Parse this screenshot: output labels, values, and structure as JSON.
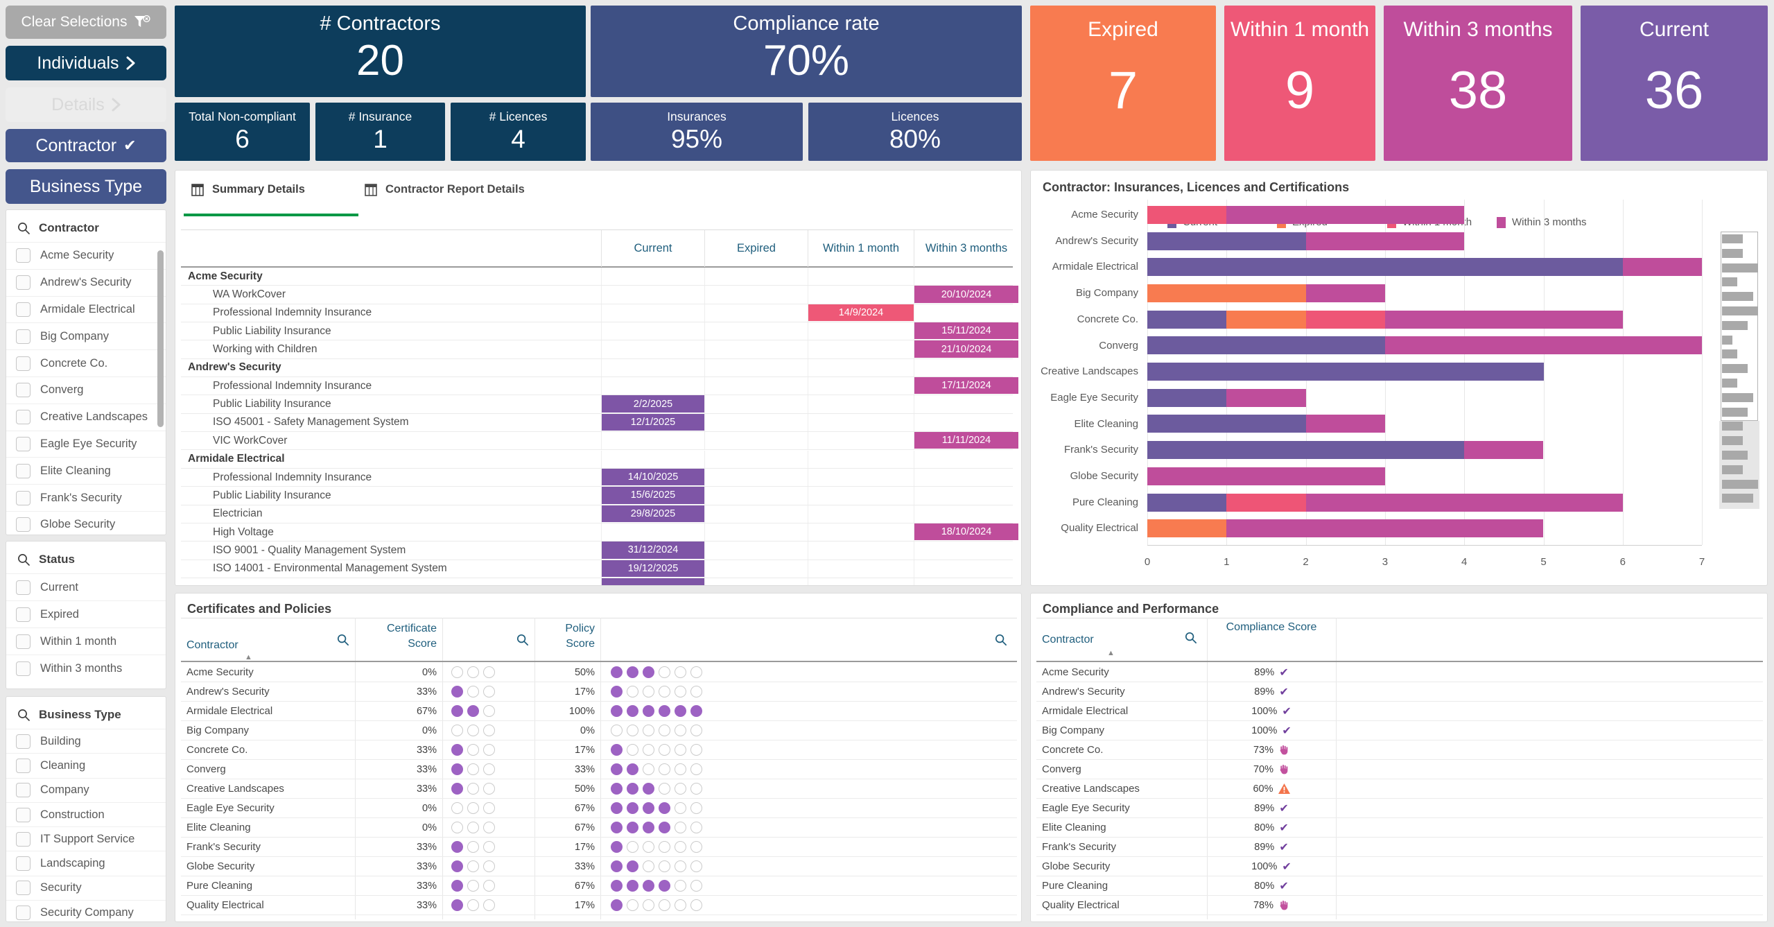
{
  "colors": {
    "navy": "#0d3d5c",
    "tile_blue": "#3e5084",
    "button_blue": "#44568c",
    "orange": "#f87b50",
    "pink": "#ee5877",
    "magenta": "#bf4d9b",
    "purple": "#7a5ca8",
    "cell_current": "#7e55a6",
    "dot": "#9d62c3",
    "dot_empty_border": "#cbcbcb",
    "check": "#713f9d",
    "hand": "#c2519e",
    "warning": "#f3744b",
    "tab_green": "#009845",
    "header_blue": "#1f5e7d",
    "minimap_bar": "#a9a9a9"
  },
  "toolbar": {
    "clear_selections": "Clear Selections",
    "individuals": "Individuals",
    "details": "Details",
    "contractor": "Contractor",
    "business_type": "Business Type"
  },
  "kpis": {
    "contractors": {
      "label": "# Contractors",
      "value": "20"
    },
    "total_non_compliant": {
      "label": "Total Non-compliant",
      "value": "6"
    },
    "num_insurance": {
      "label": "# Insurance",
      "value": "1"
    },
    "num_licences": {
      "label": "# Licences",
      "value": "4"
    },
    "compliance_rate": {
      "label": "Compliance rate",
      "value": "70%"
    },
    "insurances": {
      "label": "Insurances",
      "value": "95%"
    },
    "licences": {
      "label": "Licences",
      "value": "80%"
    },
    "expired": {
      "label": "Expired",
      "value": "7"
    },
    "within_1_month": {
      "label": "Within 1 month",
      "value": "9"
    },
    "within_3_months": {
      "label": "Within 3 months",
      "value": "38"
    },
    "current": {
      "label": "Current",
      "value": "36"
    }
  },
  "filters": {
    "contractor": {
      "title": "Contractor",
      "items": [
        "Acme Security",
        "Andrew's Security",
        "Armidale Electrical",
        "Big Company",
        "Concrete Co.",
        "Converg",
        "Creative Landscapes",
        "Eagle Eye Security",
        "Elite Cleaning",
        "Frank's Security",
        "Globe Security"
      ]
    },
    "status": {
      "title": "Status",
      "items": [
        "Current",
        "Expired",
        "Within 1 month",
        "Within 3 months"
      ]
    },
    "business_type": {
      "title": "Business Type",
      "items": [
        "Building",
        "Cleaning",
        "Company",
        "Construction",
        "IT Support Service",
        "Landscaping",
        "Security",
        "Security Company"
      ]
    }
  },
  "tabs": [
    {
      "label": "Summary Details",
      "active": true
    },
    {
      "label": "Contractor Report Details",
      "active": false
    }
  ],
  "summary_table": {
    "columns": [
      "",
      "Current",
      "Expired",
      "Within 1 month",
      "Within 3 months"
    ],
    "rows": [
      {
        "label": "Acme Security",
        "group": true
      },
      {
        "label": "WA WorkCover",
        "status": "within_3_months",
        "date": "20/10/2024"
      },
      {
        "label": "Professional Indemnity Insurance",
        "status": "within_1_month",
        "date": "14/9/2024"
      },
      {
        "label": "Public Liability Insurance",
        "status": "within_3_months",
        "date": "15/11/2024"
      },
      {
        "label": "Working with Children",
        "status": "within_3_months",
        "date": "21/10/2024"
      },
      {
        "label": "Andrew's Security",
        "group": true
      },
      {
        "label": "Professional Indemnity Insurance",
        "status": "within_3_months",
        "date": "17/11/2024"
      },
      {
        "label": "Public Liability Insurance",
        "status": "current",
        "date": "2/2/2025"
      },
      {
        "label": "ISO 45001 - Safety Management System",
        "status": "current",
        "date": "12/1/2025"
      },
      {
        "label": "VIC WorkCover",
        "status": "within_3_months",
        "date": "11/11/2024"
      },
      {
        "label": "Armidale Electrical",
        "group": true
      },
      {
        "label": "Professional Indemnity Insurance",
        "status": "current",
        "date": "14/10/2025"
      },
      {
        "label": "Public Liability Insurance",
        "status": "current",
        "date": "15/6/2025"
      },
      {
        "label": "Electrician",
        "status": "current",
        "date": "29/8/2025"
      },
      {
        "label": "High Voltage",
        "status": "within_3_months",
        "date": "18/10/2024"
      },
      {
        "label": "ISO 9001 - Quality Management System",
        "status": "current",
        "date": "31/12/2024"
      },
      {
        "label": "ISO 14001 - Environmental Management System",
        "status": "current",
        "date": "19/12/2025"
      },
      {
        "label": "",
        "status": "current",
        "date": "",
        "partial": true
      }
    ]
  },
  "chart_data": {
    "type": "bar",
    "orientation": "horizontal",
    "stacked": true,
    "title": "Contractor: Insurances, Licences and Certifications",
    "categories": [
      "Acme Security",
      "Andrew's Security",
      "Armidale Electrical",
      "Big Company",
      "Concrete Co.",
      "Converg",
      "Creative Landscapes",
      "Eagle Eye Security",
      "Elite Cleaning",
      "Frank's Security",
      "Globe Security",
      "Pure Cleaning",
      "Quality Electrical"
    ],
    "series": [
      {
        "name": "Current",
        "color": "#6c5b9e",
        "values": [
          0,
          2,
          6,
          0,
          1,
          3,
          5,
          1,
          2,
          4,
          0,
          1,
          0
        ]
      },
      {
        "name": "Expired",
        "color": "#f87b50",
        "values": [
          0,
          0,
          0,
          2,
          1,
          0,
          0,
          0,
          0,
          0,
          0,
          0,
          1
        ]
      },
      {
        "name": "Within 1 month",
        "color": "#ee5576",
        "values": [
          1,
          0,
          0,
          0,
          1,
          0,
          0,
          0,
          0,
          0,
          0,
          1,
          0
        ]
      },
      {
        "name": "Within 3 months",
        "color": "#bf4d9b",
        "values": [
          3,
          2,
          1,
          1,
          3,
          4,
          0,
          1,
          1,
          1,
          3,
          4,
          4
        ]
      }
    ],
    "xlim": [
      0,
      7
    ],
    "xticks": [
      "0",
      "1",
      "2",
      "3",
      "4",
      "5",
      "6",
      "7"
    ],
    "legend_position": "top",
    "grid": true,
    "minimap_totals": [
      4,
      4,
      7,
      3,
      6,
      7,
      5,
      2,
      3,
      5,
      3,
      6,
      5,
      4,
      4,
      5,
      4,
      7,
      6
    ],
    "minimap_visible_count": 13
  },
  "cert_table": {
    "title": "Certificates and Policies",
    "col_contractor": "Contractor",
    "col_certificate": "Certificate Score",
    "col_policy": "Policy Score",
    "cert_dots_total": 3,
    "policy_dots_total": 6,
    "rows": [
      {
        "contractor": "Acme Security",
        "certificate_score": "0%",
        "cert_filled": 0,
        "policy_score": "50%",
        "policy_filled": 3
      },
      {
        "contractor": "Andrew's Security",
        "certificate_score": "33%",
        "cert_filled": 1,
        "policy_score": "17%",
        "policy_filled": 1
      },
      {
        "contractor": "Armidale Electrical",
        "certificate_score": "67%",
        "cert_filled": 2,
        "policy_score": "100%",
        "policy_filled": 6
      },
      {
        "contractor": "Big Company",
        "certificate_score": "0%",
        "cert_filled": 0,
        "policy_score": "0%",
        "policy_filled": 0
      },
      {
        "contractor": "Concrete Co.",
        "certificate_score": "33%",
        "cert_filled": 1,
        "policy_score": "17%",
        "policy_filled": 1
      },
      {
        "contractor": "Converg",
        "certificate_score": "33%",
        "cert_filled": 1,
        "policy_score": "33%",
        "policy_filled": 2
      },
      {
        "contractor": "Creative Landscapes",
        "certificate_score": "33%",
        "cert_filled": 1,
        "policy_score": "50%",
        "policy_filled": 3
      },
      {
        "contractor": "Eagle Eye Security",
        "certificate_score": "0%",
        "cert_filled": 0,
        "policy_score": "67%",
        "policy_filled": 4
      },
      {
        "contractor": "Elite Cleaning",
        "certificate_score": "0%",
        "cert_filled": 0,
        "policy_score": "67%",
        "policy_filled": 4
      },
      {
        "contractor": "Frank's Security",
        "certificate_score": "33%",
        "cert_filled": 1,
        "policy_score": "17%",
        "policy_filled": 1
      },
      {
        "contractor": "Globe Security",
        "certificate_score": "33%",
        "cert_filled": 1,
        "policy_score": "33%",
        "policy_filled": 2
      },
      {
        "contractor": "Pure Cleaning",
        "certificate_score": "33%",
        "cert_filled": 1,
        "policy_score": "67%",
        "policy_filled": 4
      },
      {
        "contractor": "Quality Electrical",
        "certificate_score": "33%",
        "cert_filled": 1,
        "policy_score": "17%",
        "policy_filled": 1
      }
    ]
  },
  "comp_table": {
    "title": "Compliance and Performance",
    "col_contractor": "Contractor",
    "col_score": "Compliance Score",
    "rows": [
      {
        "contractor": "Acme Security",
        "score": "89%",
        "icon": "check"
      },
      {
        "contractor": "Andrew's Security",
        "score": "89%",
        "icon": "check"
      },
      {
        "contractor": "Armidale Electrical",
        "score": "100%",
        "icon": "check"
      },
      {
        "contractor": "Big Company",
        "score": "100%",
        "icon": "check"
      },
      {
        "contractor": "Concrete Co.",
        "score": "73%",
        "icon": "hand"
      },
      {
        "contractor": "Converg",
        "score": "70%",
        "icon": "hand"
      },
      {
        "contractor": "Creative Landscapes",
        "score": "60%",
        "icon": "warning"
      },
      {
        "contractor": "Eagle Eye Security",
        "score": "89%",
        "icon": "check"
      },
      {
        "contractor": "Elite Cleaning",
        "score": "80%",
        "icon": "check"
      },
      {
        "contractor": "Frank's Security",
        "score": "89%",
        "icon": "check"
      },
      {
        "contractor": "Globe Security",
        "score": "100%",
        "icon": "check"
      },
      {
        "contractor": "Pure Cleaning",
        "score": "80%",
        "icon": "check"
      },
      {
        "contractor": "Quality Electrical",
        "score": "78%",
        "icon": "hand"
      }
    ]
  }
}
